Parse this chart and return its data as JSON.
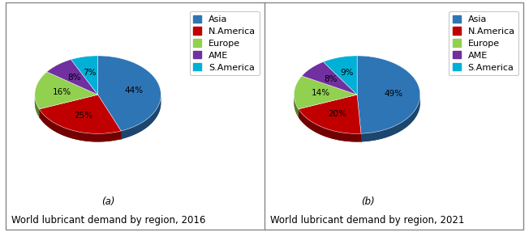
{
  "chart_a": {
    "label": "(a)",
    "title": "World lubricant demand by region, 2016",
    "values": [
      44,
      25,
      16,
      8,
      7
    ],
    "colors": [
      "#2E75B6",
      "#C00000",
      "#92D050",
      "#7030A0",
      "#00B0D7"
    ],
    "pct_labels": [
      "44%",
      "25%",
      "16%",
      "8%",
      "7%"
    ]
  },
  "chart_b": {
    "label": "(b)",
    "title": "World lubricant demand by region, 2021",
    "values": [
      49,
      20,
      14,
      8,
      9
    ],
    "colors": [
      "#2E75B6",
      "#C00000",
      "#92D050",
      "#7030A0",
      "#00B0D7"
    ],
    "pct_labels": [
      "49%",
      "20%",
      "14%",
      "8%",
      "9%"
    ]
  },
  "legend_labels": [
    "Asia",
    "N.America",
    "Europe",
    "AME",
    "S.America"
  ],
  "legend_colors": [
    "#2E75B6",
    "#C00000",
    "#92D050",
    "#7030A0",
    "#00B0D7"
  ],
  "background_color": "#ffffff",
  "pct_fontsize": 7.5,
  "legend_fontsize": 8,
  "caption_fontsize": 8.5,
  "title_fontsize": 8.5
}
